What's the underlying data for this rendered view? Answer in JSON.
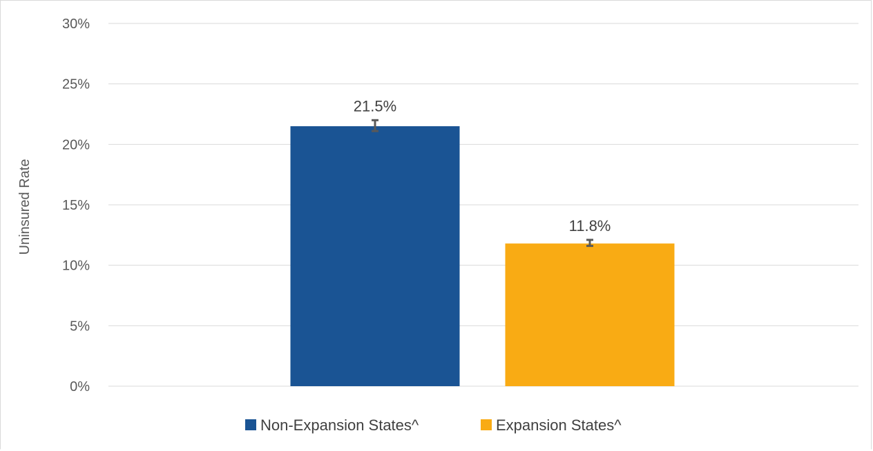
{
  "chart_data": {
    "type": "bar",
    "title": "",
    "xlabel": "",
    "ylabel": "Uninsured Rate",
    "ylim": [
      0,
      30
    ],
    "yticks": [
      "0%",
      "5%",
      "10%",
      "15%",
      "20%",
      "25%",
      "30%"
    ],
    "ytick_values": [
      0,
      5,
      10,
      15,
      20,
      25,
      30
    ],
    "grid": true,
    "legend_position": "bottom",
    "series": [
      {
        "name": "Non-Expansion States^",
        "value": 21.5,
        "label": "21.5%",
        "error_low": 21.1,
        "error_high": 22.0,
        "color": "#1a5494"
      },
      {
        "name": "Expansion States^",
        "value": 11.8,
        "label": "11.8%",
        "error_low": 11.6,
        "error_high": 12.1,
        "color": "#f9ab14"
      }
    ]
  }
}
